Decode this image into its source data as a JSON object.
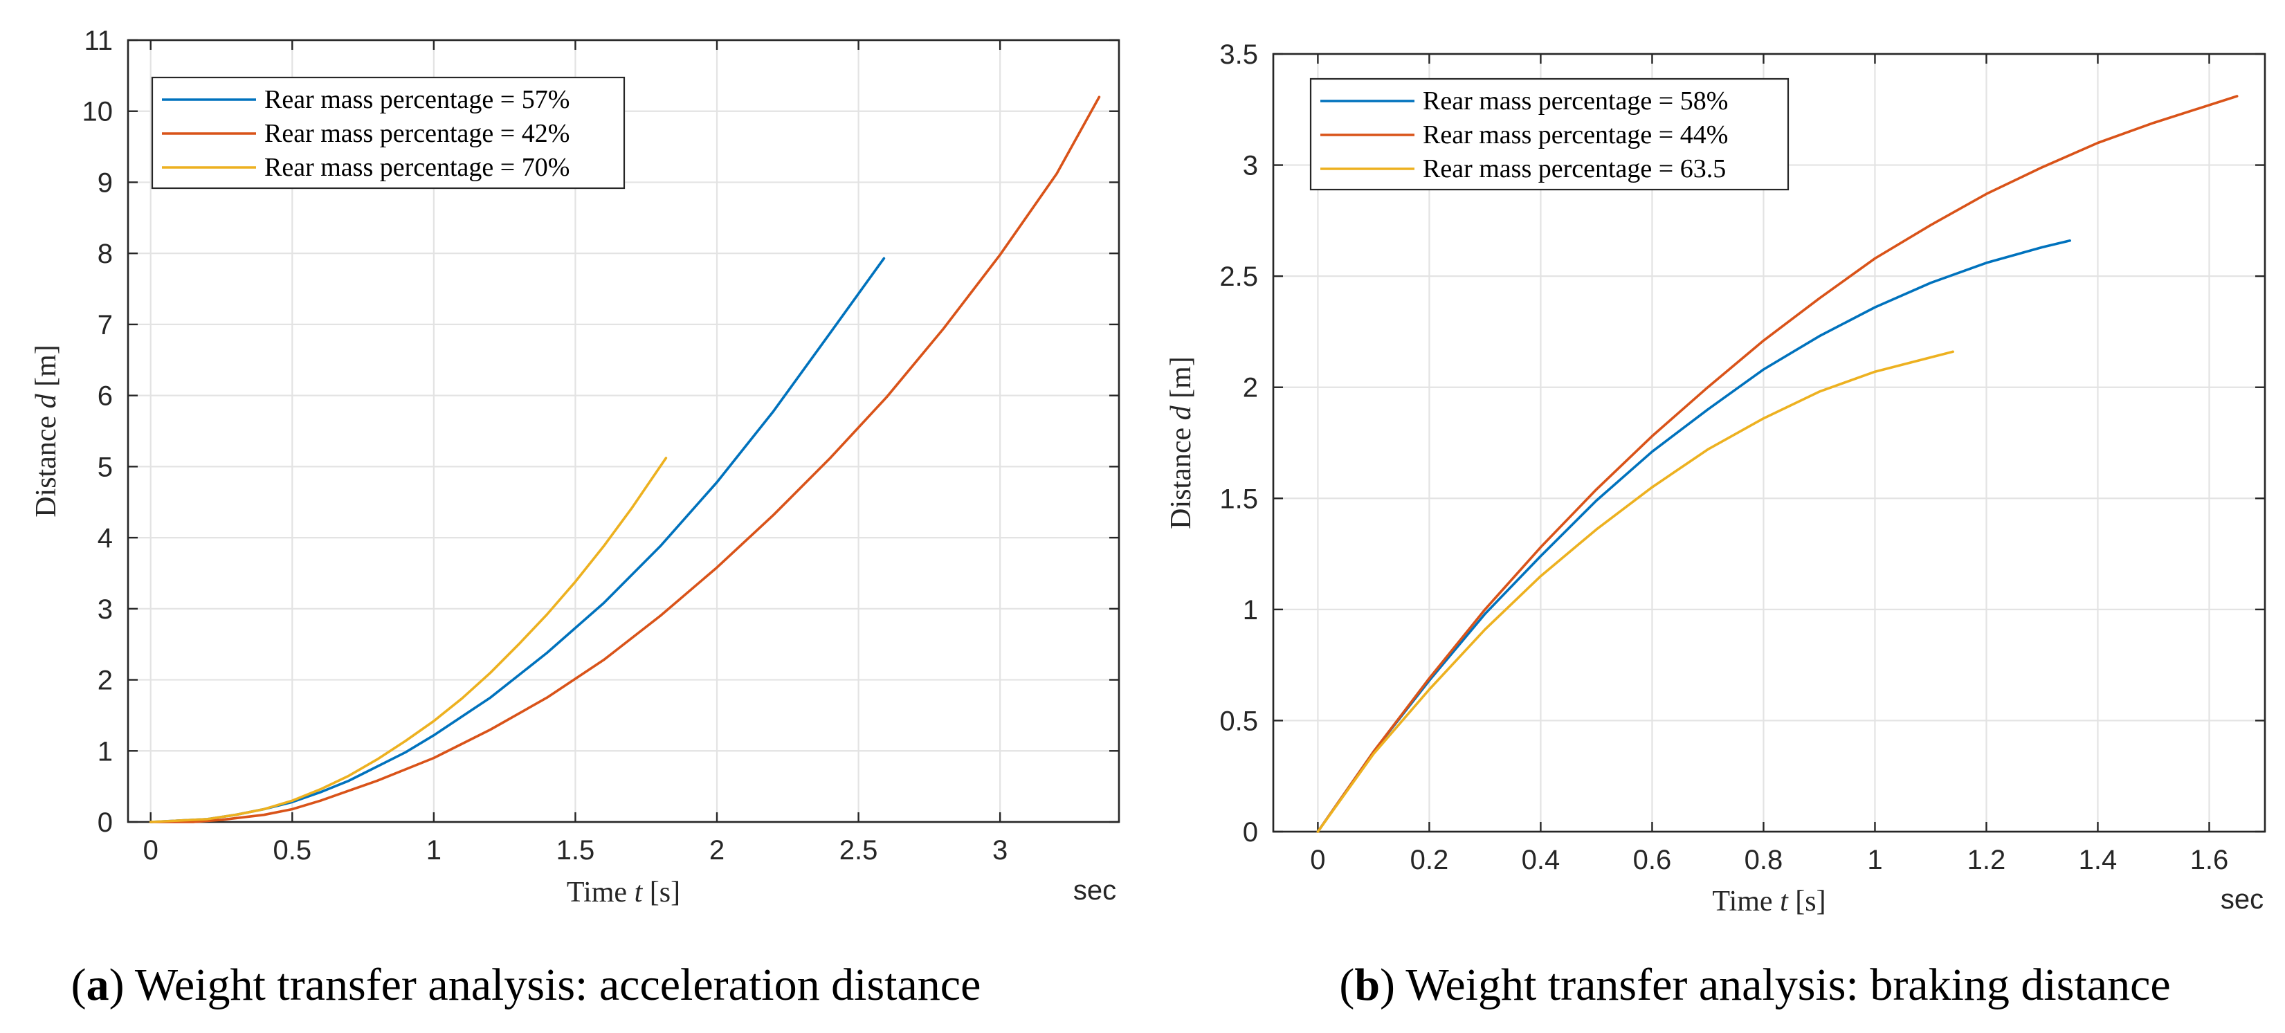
{
  "chart_data": [
    {
      "type": "line",
      "title": "",
      "caption_label": "a",
      "caption_text": "Weight transfer analysis: acceleration distance",
      "xlabel_prefix": "Time ",
      "xlabel_symbol": "t",
      "xlabel_suffix": " [s]",
      "ylabel_prefix": "Distance ",
      "ylabel_symbol": "d",
      "ylabel_suffix": " [m]",
      "unit_text": "sec",
      "xlim": [
        -0.08,
        3.42
      ],
      "ylim": [
        0,
        11
      ],
      "xticks": [
        0,
        0.5,
        1,
        1.5,
        2,
        2.5,
        3
      ],
      "xtick_labels": [
        "0",
        "0.5",
        "1",
        "1.5",
        "2",
        "2.5",
        "3"
      ],
      "yticks": [
        0,
        1,
        2,
        3,
        4,
        5,
        6,
        7,
        8,
        9,
        10,
        11
      ],
      "ytick_labels": [
        "0",
        "1",
        "2",
        "3",
        "4",
        "5",
        "6",
        "7",
        "8",
        "9",
        "10",
        "11"
      ],
      "grid": true,
      "legend_position": "top-left",
      "series": [
        {
          "name": "Rear mass percentage = 57%",
          "color": "#0072BD",
          "x": [
            0,
            0.2,
            0.3,
            0.4,
            0.5,
            0.6,
            0.7,
            0.8,
            0.9,
            1.0,
            1.2,
            1.4,
            1.6,
            1.8,
            2.0,
            2.2,
            2.4,
            2.59
          ],
          "y": [
            0,
            0.04,
            0.1,
            0.18,
            0.28,
            0.42,
            0.58,
            0.78,
            0.98,
            1.22,
            1.75,
            2.38,
            3.08,
            3.88,
            4.78,
            5.78,
            6.88,
            7.93
          ]
        },
        {
          "name": "Rear mass percentage = 42%",
          "color": "#D95319",
          "x": [
            0,
            0.15,
            0.25,
            0.4,
            0.5,
            0.6,
            0.8,
            1.0,
            1.2,
            1.4,
            1.6,
            1.8,
            2.0,
            2.2,
            2.4,
            2.6,
            2.8,
            3.0,
            3.2,
            3.35
          ],
          "y": [
            0,
            0,
            0.03,
            0.1,
            0.18,
            0.3,
            0.58,
            0.9,
            1.3,
            1.75,
            2.28,
            2.9,
            3.58,
            4.32,
            5.12,
            5.98,
            6.94,
            7.98,
            9.12,
            10.2
          ]
        },
        {
          "name": "Rear mass percentage = 70%",
          "color": "#EDB120",
          "x": [
            0,
            0.2,
            0.3,
            0.4,
            0.5,
            0.6,
            0.7,
            0.8,
            0.9,
            1.0,
            1.1,
            1.2,
            1.3,
            1.4,
            1.5,
            1.6,
            1.7,
            1.82
          ],
          "y": [
            0,
            0.04,
            0.1,
            0.18,
            0.3,
            0.46,
            0.65,
            0.88,
            1.14,
            1.42,
            1.74,
            2.1,
            2.5,
            2.92,
            3.38,
            3.88,
            4.42,
            5.12
          ]
        }
      ]
    },
    {
      "type": "line",
      "title": "",
      "caption_label": "b",
      "caption_text": "Weight transfer analysis: braking distance",
      "xlabel_prefix": "Time ",
      "xlabel_symbol": "t",
      "xlabel_suffix": " [s]",
      "ylabel_prefix": "Distance ",
      "ylabel_symbol": "d",
      "ylabel_suffix": " [m]",
      "unit_text": "sec",
      "xlim": [
        -0.08,
        1.7
      ],
      "ylim": [
        0,
        3.5
      ],
      "xticks": [
        0,
        0.2,
        0.4,
        0.6,
        0.8,
        1,
        1.2,
        1.4,
        1.6
      ],
      "xtick_labels": [
        "0",
        "0.2",
        "0.4",
        "0.6",
        "0.8",
        "1",
        "1.2",
        "1.4",
        "1.6"
      ],
      "yticks": [
        0,
        0.5,
        1,
        1.5,
        2,
        2.5,
        3,
        3.5
      ],
      "ytick_labels": [
        "0",
        "0.5",
        "1",
        "1.5",
        "2",
        "2.5",
        "3",
        "3.5"
      ],
      "grid": true,
      "legend_position": "top-left",
      "series": [
        {
          "name": "Rear mass percentage = 58%",
          "color": "#0072BD",
          "x": [
            0,
            0.1,
            0.2,
            0.3,
            0.4,
            0.5,
            0.6,
            0.7,
            0.8,
            0.9,
            1.0,
            1.1,
            1.2,
            1.3,
            1.35
          ],
          "y": [
            0,
            0.36,
            0.68,
            0.98,
            1.24,
            1.49,
            1.71,
            1.9,
            2.08,
            2.23,
            2.36,
            2.47,
            2.56,
            2.63,
            2.66
          ]
        },
        {
          "name": "Rear mass percentage = 44%",
          "color": "#D95319",
          "x": [
            0,
            0.1,
            0.2,
            0.3,
            0.4,
            0.5,
            0.6,
            0.7,
            0.8,
            0.9,
            1.0,
            1.1,
            1.2,
            1.3,
            1.4,
            1.5,
            1.65
          ],
          "y": [
            0,
            0.36,
            0.69,
            1.0,
            1.28,
            1.54,
            1.78,
            2.0,
            2.21,
            2.4,
            2.58,
            2.73,
            2.87,
            2.99,
            3.1,
            3.19,
            3.31
          ]
        },
        {
          "name": "Rear mass percentage = 63.5",
          "color": "#EDB120",
          "x": [
            0,
            0.1,
            0.2,
            0.3,
            0.4,
            0.5,
            0.6,
            0.7,
            0.8,
            0.9,
            1.0,
            1.14
          ],
          "y": [
            0,
            0.35,
            0.64,
            0.91,
            1.15,
            1.36,
            1.55,
            1.72,
            1.86,
            1.98,
            2.07,
            2.16
          ]
        }
      ]
    }
  ]
}
